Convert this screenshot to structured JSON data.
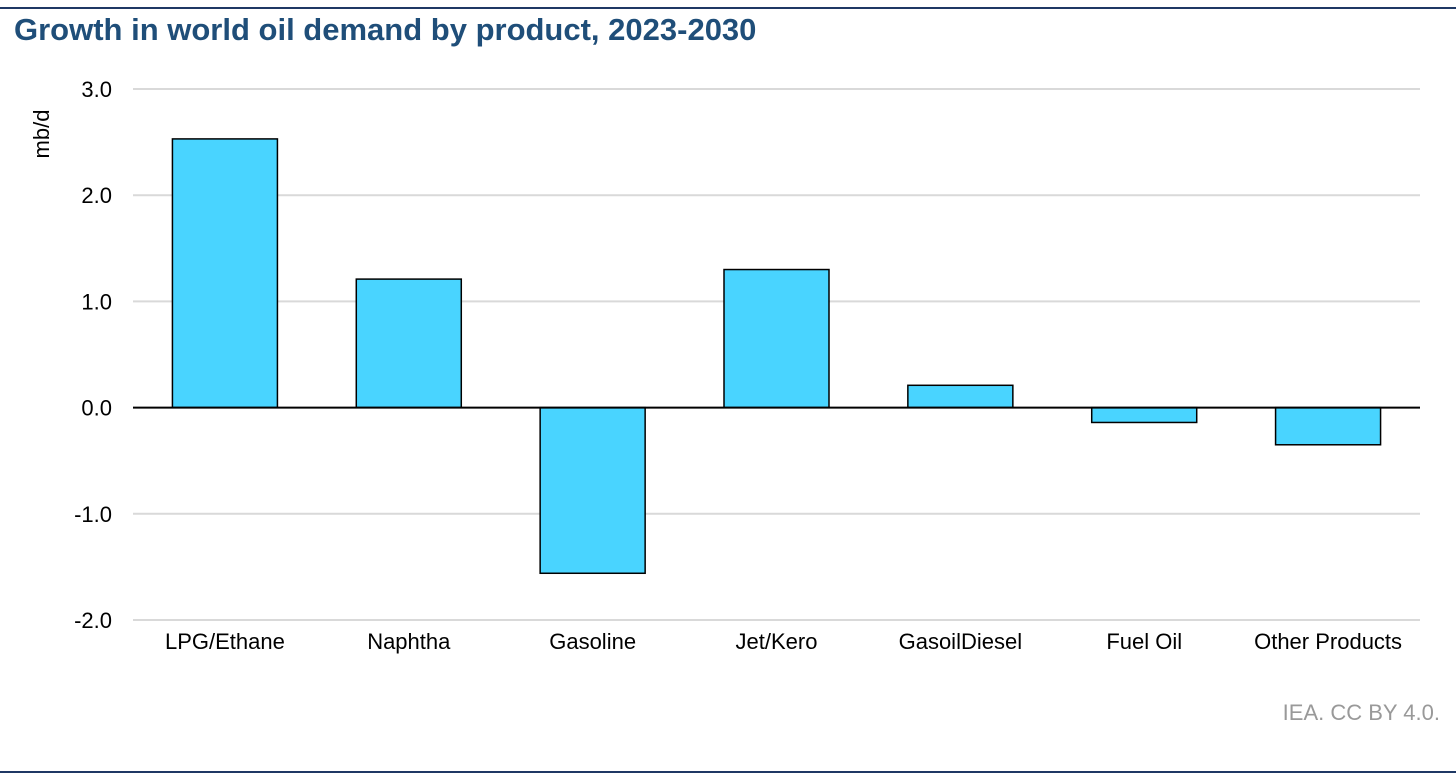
{
  "chart_data": {
    "type": "bar",
    "title": "Growth in world oil demand by product, 2023-2030",
    "ylabel": "mb/d",
    "xlabel": "",
    "categories": [
      "LPG/Ethane",
      "Naphtha",
      "Gasoline",
      "Jet/Kero",
      "GasoilDiesel",
      "Fuel Oil",
      "Other Products"
    ],
    "values": [
      2.53,
      1.21,
      -1.56,
      1.3,
      0.21,
      -0.14,
      -0.35
    ],
    "ylim": [
      -2.0,
      3.0
    ],
    "yticks": [
      "-2.0",
      "-1.0",
      "0.0",
      "1.0",
      "2.0",
      "3.0"
    ],
    "grid": true,
    "legend": "none",
    "bar_color": "#49d4ff"
  },
  "source": "IEA. CC BY 4.0."
}
